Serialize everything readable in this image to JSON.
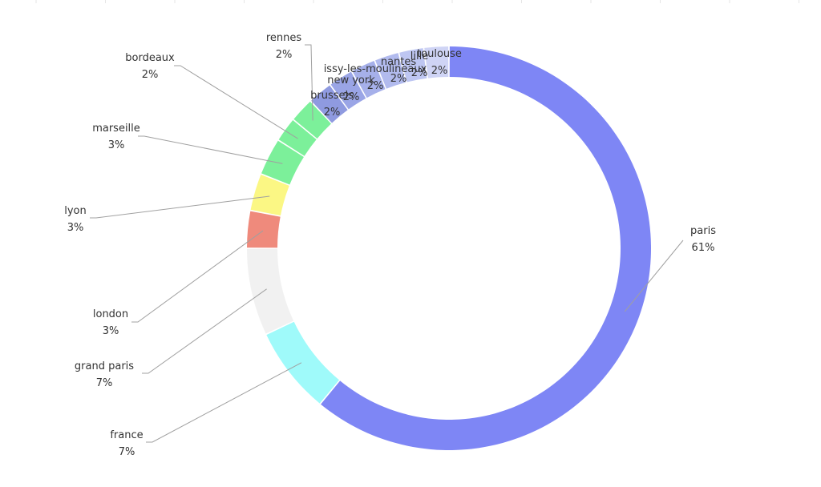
{
  "chart_data": {
    "type": "pie",
    "variant": "donut",
    "start_angle_deg": 0,
    "direction": "clockwise",
    "slices": [
      {
        "label": "paris",
        "percent_label": "61%",
        "value": 61,
        "color": "#7e86f5",
        "label_side": "right"
      },
      {
        "label": "france",
        "percent_label": "7%",
        "value": 7,
        "color": "#9ffafa",
        "label_side": "left"
      },
      {
        "label": "grand paris",
        "percent_label": "7%",
        "value": 7,
        "color": "#f1f1f1",
        "label_side": "left"
      },
      {
        "label": "london",
        "percent_label": "3%",
        "value": 3,
        "color": "#ef8a7c",
        "label_side": "left"
      },
      {
        "label": "lyon",
        "percent_label": "3%",
        "value": 3,
        "color": "#fbf784",
        "label_side": "left"
      },
      {
        "label": "marseille",
        "percent_label": "3%",
        "value": 3,
        "color": "#7cf09a",
        "label_side": "left"
      },
      {
        "label": "bordeaux",
        "percent_label": "2%",
        "value": 2,
        "color": "#7cf09a",
        "label_side": "left"
      },
      {
        "label": "rennes",
        "percent_label": "2%",
        "value": 2,
        "color": "#7cf09a",
        "label_side": "left"
      },
      {
        "label": "brussels",
        "percent_label": "2%",
        "value": 2,
        "color": "#8f9ae0",
        "label_side": "inside"
      },
      {
        "label": "new york",
        "percent_label": "2%",
        "value": 2,
        "color": "#9aa5e6",
        "label_side": "inside"
      },
      {
        "label": "issy-les-moulineaux",
        "percent_label": "2%",
        "value": 2,
        "color": "#a6b0ea",
        "label_side": "inside"
      },
      {
        "label": "nantes",
        "percent_label": "2%",
        "value": 2,
        "color": "#b2bbee",
        "label_side": "inside"
      },
      {
        "label": "lille",
        "percent_label": "2%",
        "value": 2,
        "color": "#bec6f2",
        "label_side": "inside"
      },
      {
        "label": "toulouse",
        "percent_label": "2%",
        "value": 2,
        "color": "#cfd4f5",
        "label_side": "inside"
      }
    ]
  }
}
